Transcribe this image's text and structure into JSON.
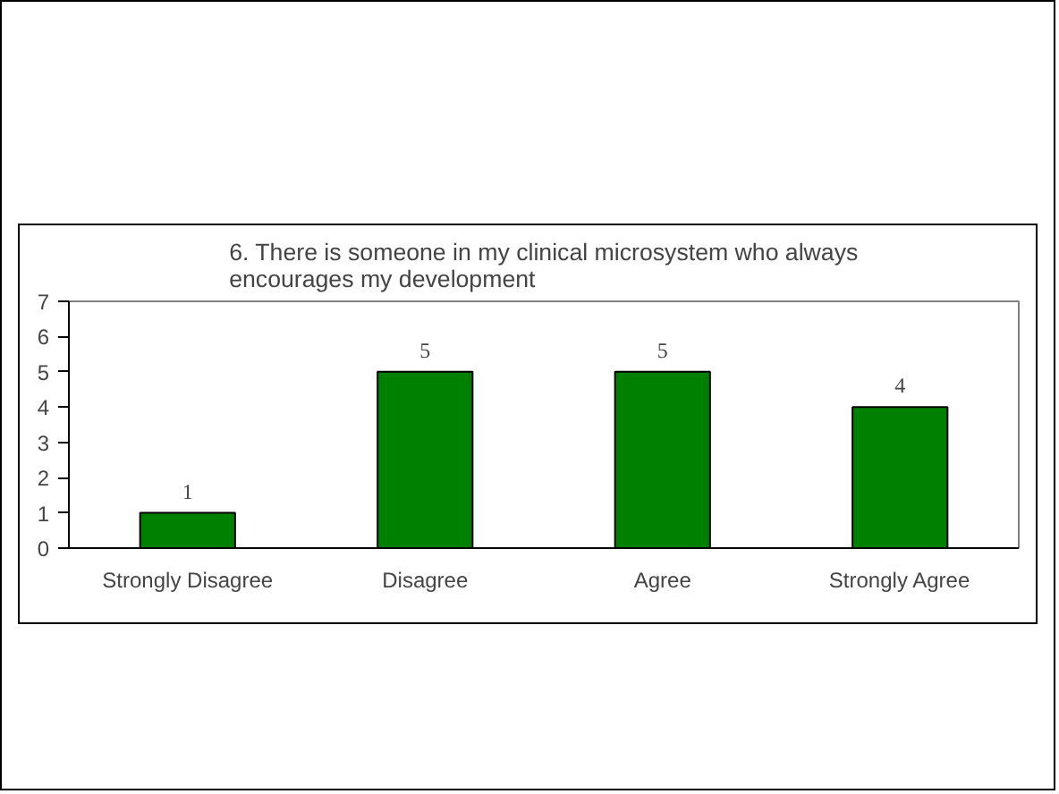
{
  "chart_data": {
    "type": "bar",
    "title": "6. There is someone in my clinical microsystem who always\nencourages my development",
    "categories": [
      "Strongly Disagree",
      "Disagree",
      "Agree",
      "Strongly Agree"
    ],
    "values": [
      1,
      5,
      5,
      4
    ],
    "color": "#008000",
    "ylim": [
      0,
      7
    ],
    "yticks": [
      0,
      1,
      2,
      3,
      4,
      5,
      6,
      7
    ],
    "grid": false,
    "data_labels": true
  }
}
